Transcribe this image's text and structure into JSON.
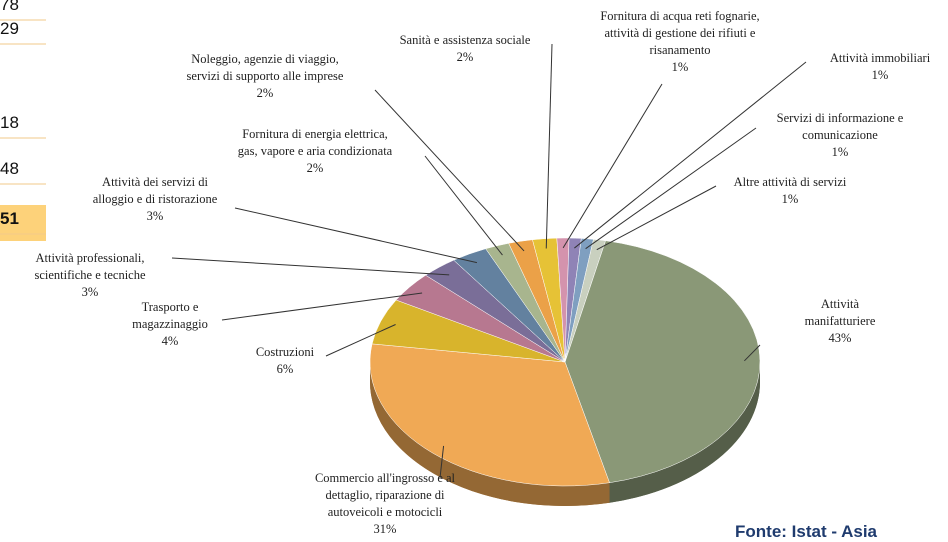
{
  "side_table": {
    "rows": [
      "78",
      "29",
      "18",
      "48",
      "51"
    ]
  },
  "chart_data": {
    "type": "pie",
    "categories": [
      "Attività\nmanifatturiere",
      "Commercio all'ingrosso e al\ndettaglio, riparazione di\nautoveicoli e motocicli",
      "Costruzioni",
      "Trasporto e\nmagazzinaggio",
      "Attività professionali,\nscientifiche e tecniche",
      "Attività dei servizi di\nalloggio e di ristorazione",
      "Fornitura di energia elettrica,\ngas, vapore e aria condizionata",
      "Noleggio, agenzie di viaggio,\nservizi di supporto alle imprese",
      "Sanità e assistenza sociale",
      "Fornitura di acqua reti fognarie,\nattività di gestione dei rifiuti e\nrisanamento",
      "Attività immobiliari",
      "Servizi di informazione e\ncomunicazione",
      "Altre attività di servizi"
    ],
    "values": [
      43,
      31,
      6,
      4,
      3,
      3,
      2,
      2,
      2,
      1,
      1,
      1,
      1
    ],
    "value_labels": [
      "43%",
      "31%",
      "6%",
      "4%",
      "3%",
      "3%",
      "2%",
      "2%",
      "2%",
      "1%",
      "1%",
      "1%",
      "1%"
    ],
    "colors": [
      "#8a9877",
      "#f0a955",
      "#d8b42c",
      "#b77890",
      "#7a6e98",
      "#63819f",
      "#a8b58e",
      "#eba148",
      "#e6c236",
      "#d493ad",
      "#8f83b6",
      "#7f9fc0",
      "#c9d0bf"
    ],
    "source": "Fonte:  Istat - Asia"
  }
}
